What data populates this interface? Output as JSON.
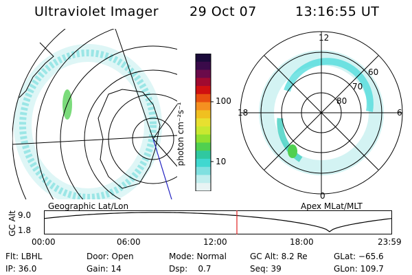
{
  "header": {
    "title": "Ultraviolet Imager",
    "date": "29 Oct 07",
    "time": "13:16:55 UT"
  },
  "left_panel": {
    "caption": "Geographic Lat/Lon"
  },
  "right_panel": {
    "caption": "Apex MLat/MLT",
    "mlt_labels": {
      "top": "12",
      "right": "6",
      "bottom": "0",
      "left": "18"
    },
    "lat_labels": [
      "60",
      "70",
      "80"
    ]
  },
  "colorbar": {
    "unit": "photon cm⁻²s⁻¹",
    "tick_labels": [
      "100",
      "10"
    ],
    "colors_top_to_bottom": [
      "#1a0a3a",
      "#3a0a4a",
      "#6a0a4a",
      "#a00a30",
      "#d01010",
      "#e85010",
      "#f59020",
      "#f0c020",
      "#e8e030",
      "#c8e830",
      "#90e030",
      "#50d050",
      "#30c8a0",
      "#40d8d0",
      "#80e0e0",
      "#c0eeee",
      "#e8f4f4"
    ]
  },
  "timeline": {
    "ylabel": "GC Alt",
    "ytick_top": "9.0",
    "ytick_bottom": "1.8",
    "xticks": [
      "00:00",
      "06:00",
      "12:00",
      "18:00",
      "23:59"
    ],
    "current_marker_hour": 13.28
  },
  "info": {
    "flt": "Flt: LBHL",
    "door": "Door: Open",
    "mode": "Mode: Normal",
    "gcalt": "GC Alt: 8.2 Re",
    "glat": "GLat: −65.6",
    "ip": "IP: 36.0",
    "gain": "Gain: 14",
    "dsp": "Dsp:    0.7",
    "seq": "Seq: 39",
    "glon": "GLon: 109.7"
  },
  "colors": {
    "aurora_cyan": "#40d8d8",
    "aurora_green": "#50d050",
    "marker_red": "#e02020",
    "axis_blue": "#2020c0"
  }
}
